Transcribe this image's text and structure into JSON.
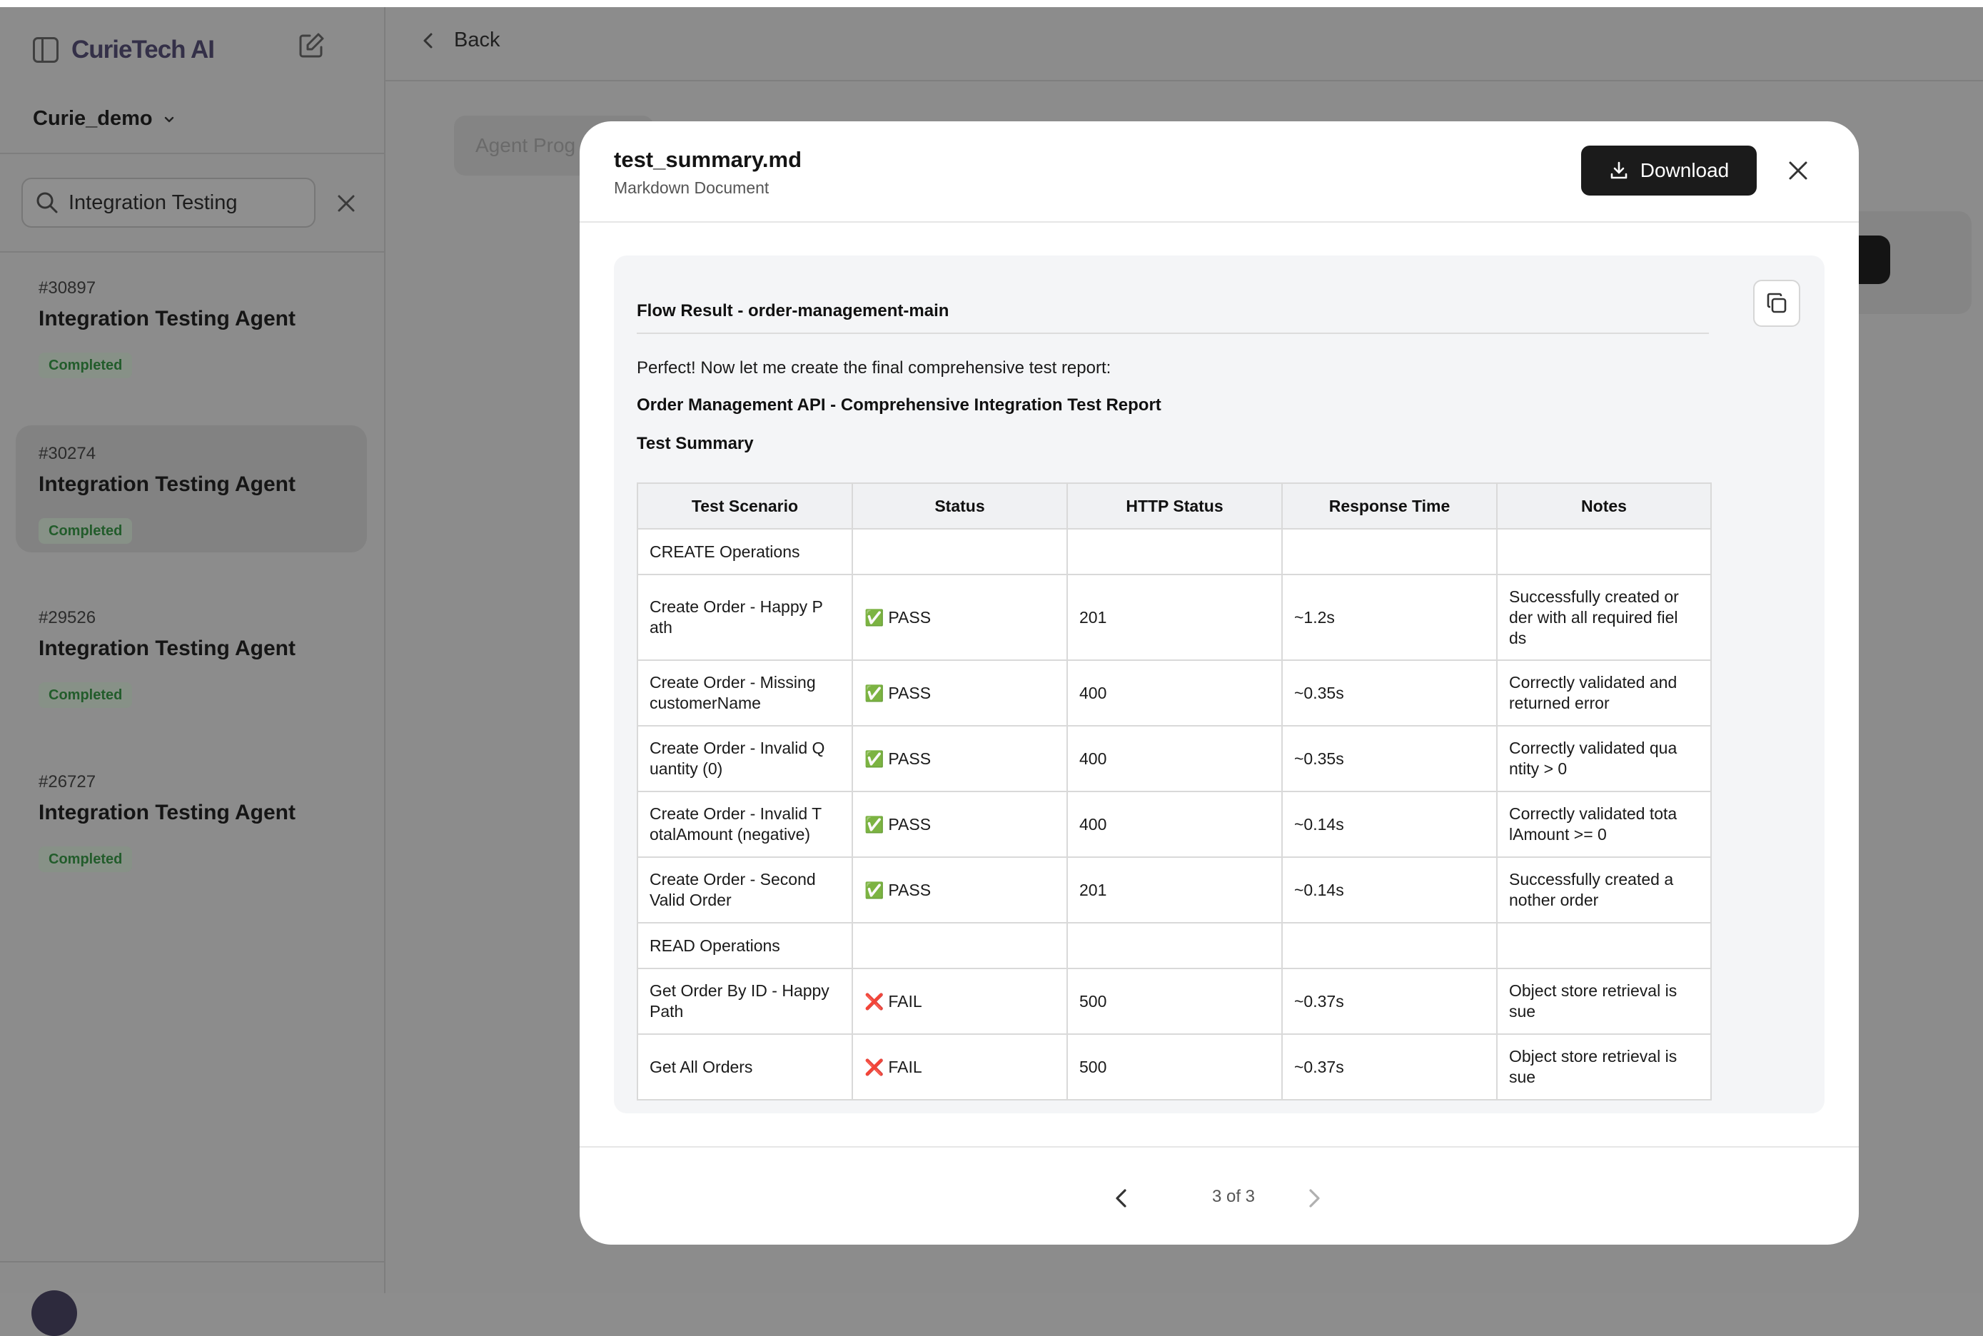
{
  "app": {
    "brand": "CurieTech AI",
    "workspace": "Curie_demo"
  },
  "sidebar": {
    "search": {
      "value": "Integration Testing",
      "placeholder": "Search"
    },
    "runs": [
      {
        "id": "#30897",
        "title": "Integration Testing Agent",
        "status": "Completed",
        "selected": false
      },
      {
        "id": "#30274",
        "title": "Integration Testing Agent",
        "status": "Completed",
        "selected": true
      },
      {
        "id": "#29526",
        "title": "Integration Testing Agent",
        "status": "Completed",
        "selected": false
      },
      {
        "id": "#26727",
        "title": "Integration Testing Agent",
        "status": "Completed",
        "selected": false
      }
    ]
  },
  "main": {
    "back_label": "Back",
    "progress_tab_label": "Agent Prog"
  },
  "modal": {
    "file_name": "test_summary.md",
    "file_type": "Markdown Document",
    "download_label": "Download",
    "doc": {
      "heading": "Flow Result - order-management-main",
      "intro": "Perfect! Now let me create the final comprehensive test report:",
      "report_title": "Order Management API - Comprehensive Integration Test Report",
      "summary_heading": "Test Summary",
      "table": {
        "headers": [
          "Test Scenario",
          "Status",
          "HTTP Status",
          "Response Time",
          "Notes"
        ],
        "rows": [
          {
            "section": "CREATE Operations"
          },
          {
            "scenario": "Create Order - Happy P ath",
            "status": "PASS",
            "http": "201",
            "time": "~1.2s",
            "notes": "Successfully created or der with all required fiel ds"
          },
          {
            "scenario": "Create Order - Missing customerName",
            "status": "PASS",
            "http": "400",
            "time": "~0.35s",
            "notes": "Correctly validated and returned error"
          },
          {
            "scenario": "Create Order - Invalid Q uantity (0)",
            "status": "PASS",
            "http": "400",
            "time": "~0.35s",
            "notes": "Correctly validated qua ntity > 0"
          },
          {
            "scenario": "Create Order - Invalid T otalAmount (negative)",
            "status": "PASS",
            "http": "400",
            "time": "~0.14s",
            "notes": "Correctly validated tota lAmount >= 0"
          },
          {
            "scenario": "Create Order - Second Valid Order",
            "status": "PASS",
            "http": "201",
            "time": "~0.14s",
            "notes": "Successfully created a nother order"
          },
          {
            "section": "READ Operations"
          },
          {
            "scenario": "Get Order By ID - Happy Path",
            "status": "FAIL",
            "http": "500",
            "time": "~0.37s",
            "notes": "Object store retrieval is sue"
          },
          {
            "scenario": "Get All Orders",
            "status": "FAIL",
            "http": "500",
            "time": "~0.37s",
            "notes": "Object store retrieval is sue"
          }
        ]
      }
    },
    "pager": {
      "text": "3 of 3"
    }
  },
  "colors": {
    "pass": "#2e9a3a",
    "fail": "#e02424",
    "badge_text": "#225c2b",
    "download_bg": "#1b1b1b"
  }
}
